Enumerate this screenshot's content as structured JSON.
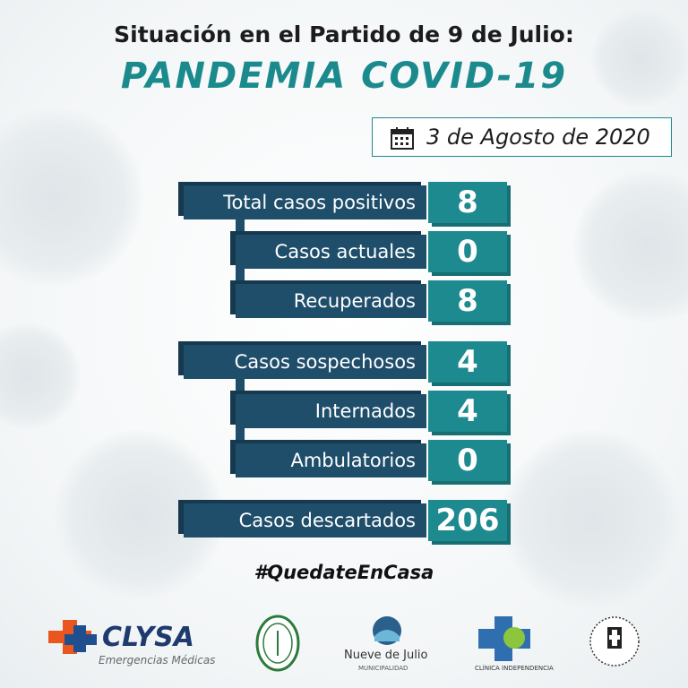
{
  "header": {
    "title": "Situación en el Partido de 9 de Julio:",
    "subtitle": "PANDEMIA COVID-19",
    "date": "3 de Agosto de 2020"
  },
  "stats": {
    "groups": [
      {
        "rows": [
          {
            "label": "Total casos positivos",
            "value": 8
          },
          {
            "label": "Casos actuales",
            "value": 0
          },
          {
            "label": "Recuperados",
            "value": 8
          }
        ]
      },
      {
        "rows": [
          {
            "label": "Casos sospechosos",
            "value": 4
          },
          {
            "label": "Internados",
            "value": 4
          },
          {
            "label": "Ambulatorios",
            "value": 0
          }
        ]
      },
      {
        "rows": [
          {
            "label": "Casos descartados",
            "value": 206
          }
        ]
      }
    ]
  },
  "hashtag": "#QuedateEnCasa",
  "footer": {
    "clysa": "CLYSA",
    "clysa_sub": "Emergencias Médicas",
    "municipio": "Nueve de Julio",
    "municipio_sub": "MUNICIPALIDAD",
    "clinica": "CLÍNICA INDEPENDENCIA"
  }
}
